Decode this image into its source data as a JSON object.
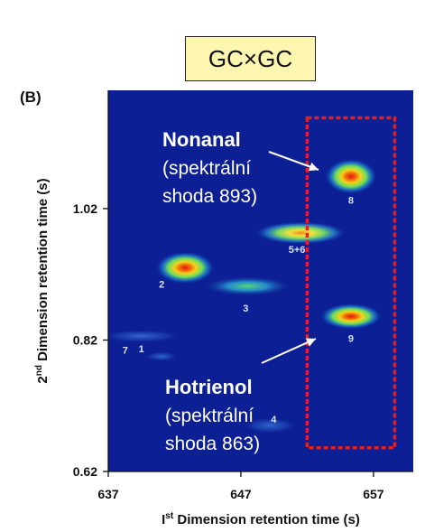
{
  "header": {
    "title": "GC×GC",
    "panel": "(B)"
  },
  "chart_data": {
    "type": "heatmap",
    "xlabel_prefix": "I",
    "xlabel_sup": "st",
    "xlabel_rest": " Dimension retention time (s)",
    "ylabel_prefix": "2",
    "ylabel_sup": "nd",
    "ylabel_rest": " Dimension retention time (s)",
    "xlim": [
      637,
      660
    ],
    "ylim": [
      0.62,
      1.2
    ],
    "x_ticks": [
      "637",
      "647",
      "657"
    ],
    "y_ticks": [
      "0.62",
      "0.82",
      "1.02"
    ],
    "peaks": [
      {
        "label": "1",
        "x": 639.5,
        "y": 0.826,
        "sx": 2.5,
        "sy": 0.008,
        "intensity": 0.35
      },
      {
        "label": "2",
        "x": 642.8,
        "y": 0.93,
        "sx": 1.8,
        "sy": 0.02,
        "intensity": 0.95
      },
      {
        "label": "3",
        "x": 647.5,
        "y": 0.902,
        "sx": 2.7,
        "sy": 0.012,
        "intensity": 0.55
      },
      {
        "label": "4",
        "x": 649.2,
        "y": 0.69,
        "sx": 1.7,
        "sy": 0.01,
        "intensity": 0.35
      },
      {
        "label": "5+6",
        "x": 651.5,
        "y": 0.983,
        "sx": 2.8,
        "sy": 0.014,
        "intensity": 0.8
      },
      {
        "label": "7",
        "x": 641.0,
        "y": 0.795,
        "sx": 1.0,
        "sy": 0.006,
        "intensity": 0.3
      },
      {
        "label": "8",
        "x": 655.3,
        "y": 1.069,
        "sx": 1.6,
        "sy": 0.022,
        "intensity": 1.0
      },
      {
        "label": "9",
        "x": 655.3,
        "y": 0.856,
        "sx": 1.9,
        "sy": 0.016,
        "intensity": 1.0
      }
    ],
    "highlight_box": {
      "x": [
        652.0,
        658.6
      ],
      "y": [
        0.656,
        1.158
      ],
      "color": "#e8201c"
    },
    "annotations": [
      {
        "title": "Nonanal",
        "line1": "(spektrální",
        "line2": "shoda 893)",
        "target": "8"
      },
      {
        "title": "Hotrienol",
        "line1": "(spektrální",
        "line2": "shoda 863)",
        "target": "9"
      }
    ]
  }
}
